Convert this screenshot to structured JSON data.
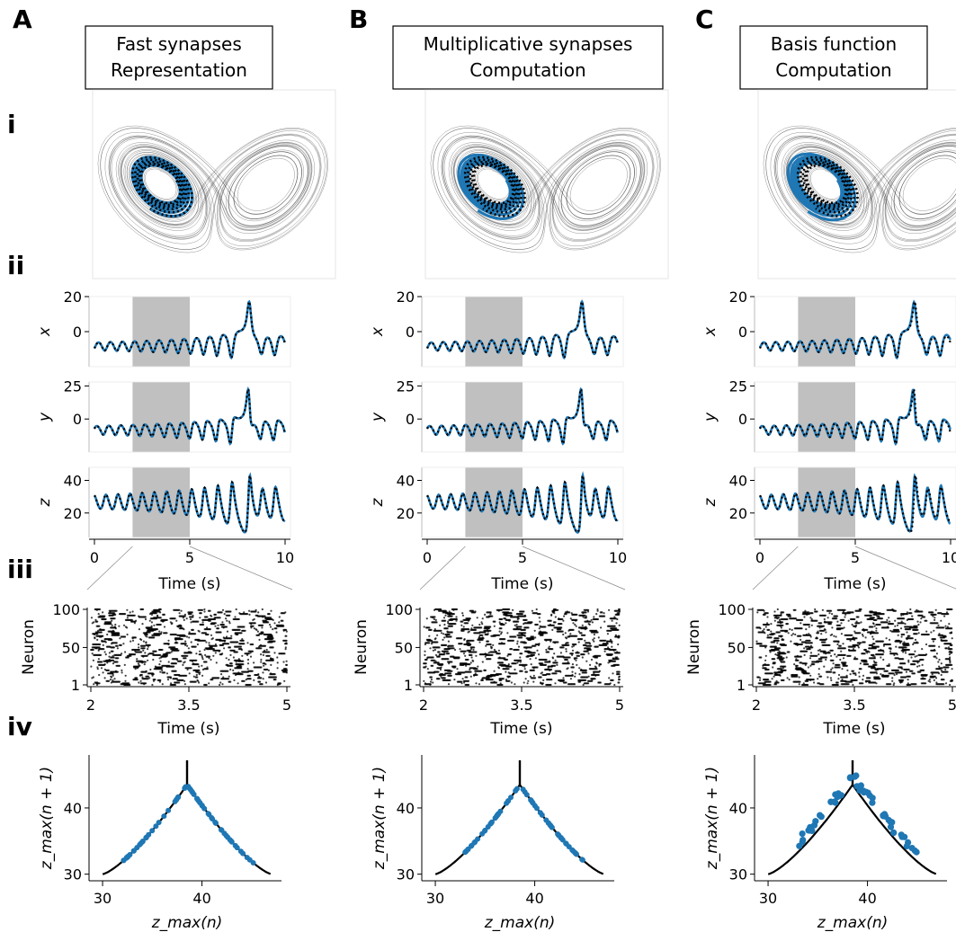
{
  "figure": {
    "panel_letters": [
      "A",
      "B",
      "C"
    ],
    "row_labels": [
      "i",
      "ii",
      "iii",
      "iv"
    ]
  },
  "columns": [
    {
      "letter": "A",
      "title_line1": "Fast synapses",
      "title_line2": "Representation",
      "fit": "good"
    },
    {
      "letter": "B",
      "title_line1": "Multiplicative synapses",
      "title_line2": "Computation",
      "fit": "good-then-diverge"
    },
    {
      "letter": "C",
      "title_line1": "Basis function",
      "title_line2": "Computation",
      "fit": "diverge"
    }
  ],
  "colors": {
    "decoded": "#1f77b4",
    "target": "#000000",
    "attractor": "#555555",
    "shade": "#c0c0c0"
  },
  "chart_data": [
    {
      "type": "line",
      "panel": "i",
      "description_series": [
        "decoded",
        "target"
      ],
      "axes_visible": false
    },
    {
      "type": "line",
      "panel": "ii",
      "xlabel": "Time (s)",
      "xticks": [
        "0",
        "5",
        "10"
      ],
      "xlim": [
        0,
        10
      ],
      "shaded_interval": [
        2,
        5
      ],
      "subplots": [
        {
          "ylabel": "x",
          "yticks": [
            "0",
            "20"
          ],
          "ylim": [
            -20,
            20
          ]
        },
        {
          "ylabel": "y",
          "yticks": [
            "0",
            "25"
          ],
          "ylim": [
            -25,
            28
          ]
        },
        {
          "ylabel": "z",
          "yticks": [
            "20",
            "40"
          ],
          "ylim": [
            5,
            48
          ]
        }
      ]
    },
    {
      "type": "scatter",
      "panel": "iii",
      "xlabel": "Time (s)",
      "ylabel": "Neuron",
      "xticks": [
        "2",
        "3.5",
        "5"
      ],
      "xlim": [
        2,
        5
      ],
      "yticks": [
        "1",
        "50",
        "100"
      ],
      "ylim": [
        1,
        100
      ]
    },
    {
      "type": "scatter",
      "panel": "iv",
      "xlabel": "z_max(n)",
      "ylabel": "z_max(n + 1)",
      "xticks": [
        "30",
        "40"
      ],
      "yticks": [
        "30",
        "40"
      ],
      "xlim": [
        29,
        48
      ],
      "ylim": [
        29,
        48
      ],
      "peak": [
        38.5,
        47
      ]
    }
  ]
}
